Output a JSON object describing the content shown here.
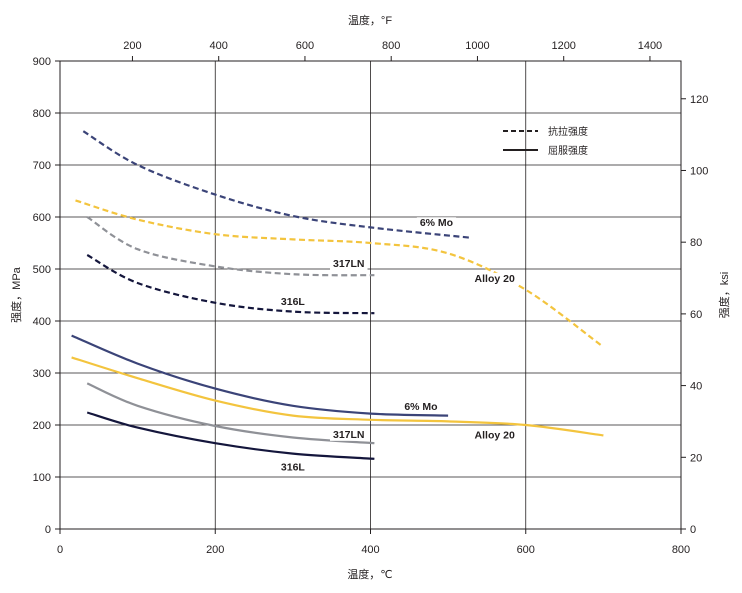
{
  "chart_data": {
    "type": "line",
    "xlabel": "温度，℃",
    "xlabel_top": "温度，°F",
    "ylabel": "强度，MPa",
    "ylabel_right": "强度，ksi",
    "xlim": [
      0,
      800
    ],
    "ylim": [
      0,
      900
    ],
    "x_ticks": [
      0,
      200,
      400,
      600,
      800
    ],
    "y_ticks": [
      0,
      100,
      200,
      300,
      400,
      500,
      600,
      700,
      800,
      900
    ],
    "top_ticks": [
      200,
      400,
      600,
      800,
      1000,
      1200,
      1400
    ],
    "right_ticks": [
      0,
      20,
      40,
      60,
      80,
      100,
      120
    ],
    "grid": true,
    "legend_position": "top-right",
    "legend": [
      {
        "label": "抗拉强度",
        "style": "dashed"
      },
      {
        "label": "屈服强度",
        "style": "solid"
      }
    ],
    "colors": {
      "6% Mo": "#3b4478",
      "317LN": "#8f9197",
      "316L": "#14163c",
      "Alloy 20": "#f3c43e"
    },
    "series": [
      {
        "name": "6% Mo",
        "kind": "tensile",
        "style": "dashed",
        "x": [
          30,
          100,
          200,
          300,
          400,
          530
        ],
        "y": [
          765,
          700,
          643,
          602,
          580,
          560
        ]
      },
      {
        "name": "317LN",
        "kind": "tensile",
        "style": "dashed",
        "x": [
          35,
          100,
          200,
          300,
          405
        ],
        "y": [
          600,
          538,
          505,
          490,
          488
        ]
      },
      {
        "name": "316L",
        "kind": "tensile",
        "style": "dashed",
        "x": [
          35,
          100,
          200,
          300,
          405
        ],
        "y": [
          527,
          473,
          435,
          418,
          415
        ]
      },
      {
        "name": "Alloy 20",
        "kind": "tensile",
        "style": "dashed",
        "x": [
          20,
          100,
          200,
          300,
          400,
          500,
          600,
          700
        ],
        "y": [
          632,
          595,
          567,
          557,
          550,
          530,
          460,
          350
        ]
      },
      {
        "name": "6% Mo",
        "kind": "yield",
        "style": "solid",
        "x": [
          15,
          100,
          200,
          300,
          400,
          500
        ],
        "y": [
          372,
          318,
          270,
          237,
          222,
          218
        ]
      },
      {
        "name": "317LN",
        "kind": "yield",
        "style": "solid",
        "x": [
          35,
          100,
          200,
          300,
          405
        ],
        "y": [
          280,
          237,
          198,
          176,
          165
        ]
      },
      {
        "name": "316L",
        "kind": "yield",
        "style": "solid",
        "x": [
          35,
          100,
          200,
          300,
          405
        ],
        "y": [
          224,
          195,
          165,
          145,
          135
        ]
      },
      {
        "name": "Alloy 20",
        "kind": "yield",
        "style": "solid",
        "x": [
          15,
          100,
          200,
          300,
          400,
          500,
          600,
          700
        ],
        "y": [
          330,
          290,
          247,
          218,
          210,
          207,
          200,
          180
        ]
      }
    ],
    "labels": [
      {
        "text": "6% Mo",
        "x": 485,
        "y": 590
      },
      {
        "text": "317LN",
        "x": 372,
        "y": 512
      },
      {
        "text": "316L",
        "x": 300,
        "y": 438
      },
      {
        "text": "Alloy 20",
        "x": 560,
        "y": 483
      },
      {
        "text": "6% Mo",
        "x": 465,
        "y": 237
      },
      {
        "text": "317LN",
        "x": 372,
        "y": 183
      },
      {
        "text": "316L",
        "x": 300,
        "y": 120
      },
      {
        "text": "Alloy 20",
        "x": 560,
        "y": 182
      }
    ]
  }
}
